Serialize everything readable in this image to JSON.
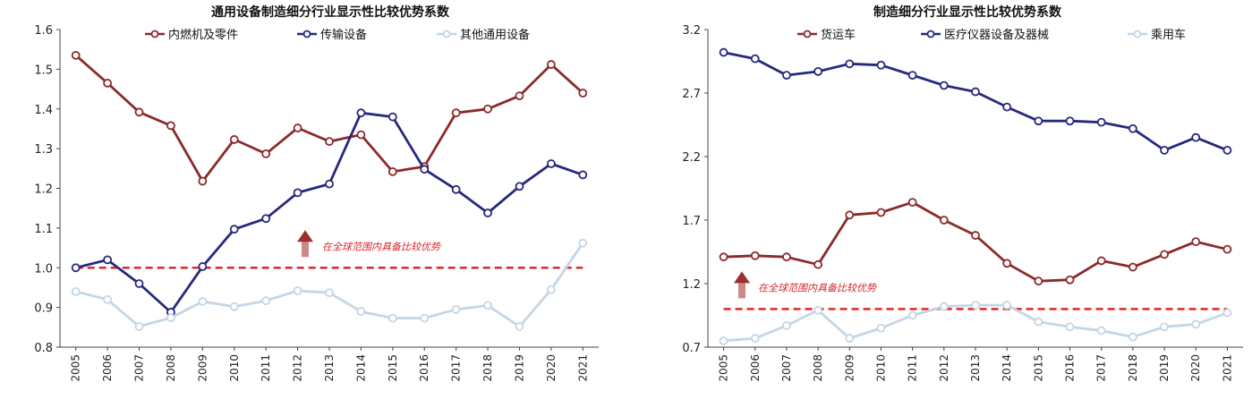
{
  "chart_data": [
    {
      "type": "line",
      "title": "通用设备制造细分行业显示性比较优势系数",
      "xlabel": "",
      "ylabel": "",
      "x": [
        "2005",
        "2006",
        "2007",
        "2008",
        "2009",
        "2010",
        "2011",
        "2012",
        "2013",
        "2014",
        "2015",
        "2016",
        "2017",
        "2018",
        "2019",
        "2020",
        "2021"
      ],
      "ylim": [
        0.8,
        1.6
      ],
      "yticks": [
        "0.8",
        "0.9",
        "1.0",
        "1.1",
        "1.2",
        "1.3",
        "1.4",
        "1.5",
        "1.6"
      ],
      "legend_position": "top",
      "series": [
        {
          "name": "内燃机及零件",
          "color": "#8b2a2a",
          "values": [
            1.535,
            1.465,
            1.392,
            1.358,
            1.218,
            1.323,
            1.287,
            1.352,
            1.318,
            1.335,
            1.242,
            1.255,
            1.39,
            1.4,
            1.433,
            1.512,
            1.44
          ]
        },
        {
          "name": "传输设备",
          "color": "#27287e",
          "values": [
            1.0,
            1.02,
            0.96,
            0.888,
            1.003,
            1.097,
            1.124,
            1.189,
            1.211,
            1.39,
            1.38,
            1.248,
            1.197,
            1.138,
            1.205,
            1.262,
            1.234
          ]
        },
        {
          "name": "其他通用设备",
          "color": "#c4d6e6",
          "values": [
            0.94,
            0.92,
            0.852,
            0.874,
            0.915,
            0.902,
            0.917,
            0.942,
            0.937,
            0.89,
            0.873,
            0.873,
            0.895,
            0.905,
            0.852,
            0.945,
            1.062
          ]
        }
      ],
      "threshold": 1.0,
      "threshold_color": "#e0262b",
      "annotation": "在全球范围内具备比较优势"
    },
    {
      "type": "line",
      "title": "制造细分行业显示性比较优势系数",
      "xlabel": "",
      "ylabel": "",
      "x": [
        "2005",
        "2006",
        "2007",
        "2008",
        "2009",
        "2010",
        "2011",
        "2012",
        "2013",
        "2014",
        "2015",
        "2016",
        "2017",
        "2018",
        "2019",
        "2020",
        "2021"
      ],
      "ylim": [
        0.7,
        3.2
      ],
      "yticks": [
        "0.7",
        "1.2",
        "1.7",
        "2.2",
        "2.7",
        "3.2"
      ],
      "legend_position": "top",
      "series": [
        {
          "name": "货运车",
          "color": "#8b2a2a",
          "values": [
            1.41,
            1.42,
            1.41,
            1.35,
            1.74,
            1.76,
            1.84,
            1.7,
            1.58,
            1.36,
            1.22,
            1.23,
            1.38,
            1.33,
            1.43,
            1.53,
            1.47
          ]
        },
        {
          "name": "医疗仪器设备及器械",
          "color": "#27287e",
          "values": [
            3.02,
            2.97,
            2.84,
            2.87,
            2.93,
            2.92,
            2.84,
            2.76,
            2.71,
            2.59,
            2.48,
            2.48,
            2.47,
            2.42,
            2.25,
            2.35,
            2.25
          ]
        },
        {
          "name": "乘用车",
          "color": "#c4d6e6",
          "values": [
            0.75,
            0.77,
            0.87,
            0.99,
            0.77,
            0.85,
            0.95,
            1.02,
            1.03,
            1.03,
            0.9,
            0.86,
            0.83,
            0.78,
            0.86,
            0.88,
            0.97
          ]
        }
      ],
      "threshold": 1.0,
      "threshold_color": "#e0262b",
      "annotation": "在全球范围内具备比较优势"
    }
  ]
}
